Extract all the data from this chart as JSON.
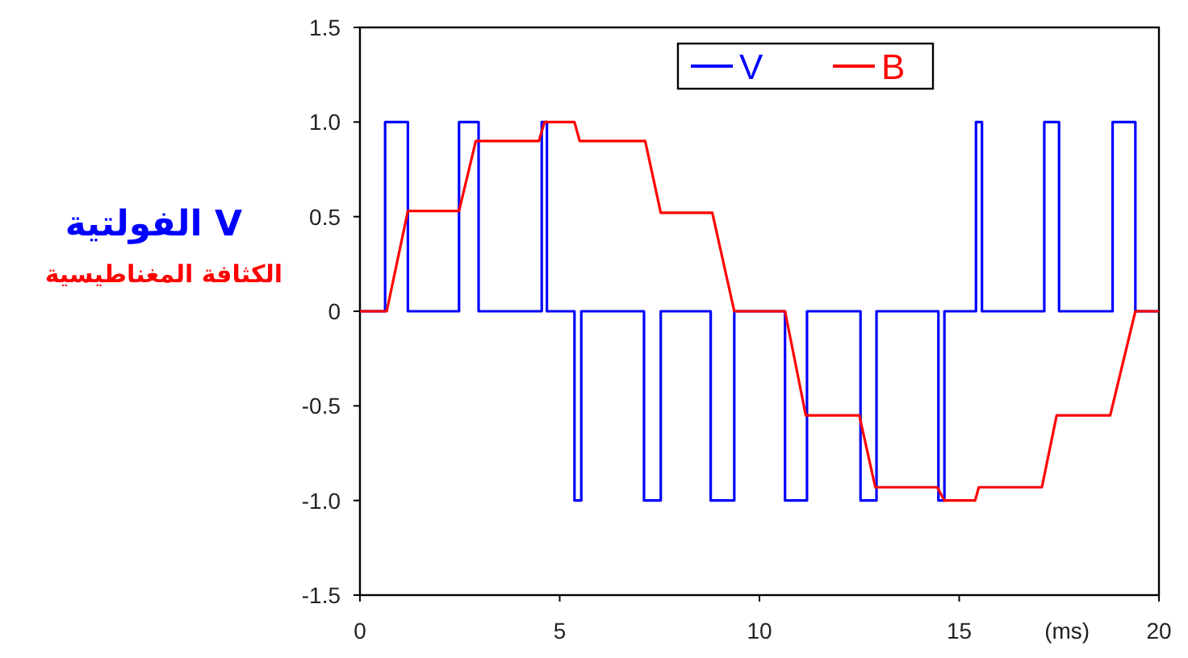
{
  "chart_data": {
    "type": "line",
    "xlim": [
      0,
      20
    ],
    "ylim": [
      -1.5,
      1.5
    ],
    "xticks": [
      0,
      5,
      10,
      15,
      20
    ],
    "yticks": [
      {
        "value": -1.5,
        "label": "-1.5"
      },
      {
        "value": -1,
        "label": "-1.0"
      },
      {
        "value": -0.5,
        "label": "-0.5"
      },
      0,
      {
        "value": 0.5,
        "label": "0.5"
      },
      {
        "value": 1,
        "label": "1.0"
      },
      {
        "value": 1.5,
        "label": "1.5"
      }
    ],
    "xlabel": "(ms)",
    "legend": "top",
    "annotations": [
      "V الفولتية",
      "الكثافة المغناطيسية"
    ],
    "series": [
      {
        "name": "V",
        "type": "step",
        "color": "#0000ff",
        "x": [
          0,
          0.63,
          1.2,
          2.48,
          2.97,
          4.55,
          4.68,
          5.37,
          5.54,
          7.11,
          7.53,
          8.78,
          9.37,
          10.64,
          11.19,
          12.53,
          12.93,
          14.48,
          14.63,
          15.42,
          15.57,
          17.13,
          17.5,
          18.84,
          19.41,
          20
        ],
        "values": [
          0,
          1,
          0,
          1,
          0,
          1,
          0,
          -1,
          0,
          -1,
          0,
          -1,
          0,
          -1,
          0,
          -1,
          0,
          -1,
          0,
          1,
          0,
          1,
          0,
          1,
          0,
          0
        ]
      },
      {
        "name": "B",
        "type": "line",
        "color": "#ff0000",
        "x": [
          0,
          0.67,
          1.2,
          2.48,
          2.9,
          4.48,
          4.62,
          5.37,
          5.5,
          7.14,
          7.53,
          8.82,
          9.37,
          10.64,
          11.16,
          12.5,
          12.9,
          14.45,
          14.63,
          15.4,
          15.49,
          17.07,
          17.44,
          18.78,
          19.41,
          20
        ],
        "values": [
          0,
          0,
          0.53,
          0.53,
          0.9,
          0.9,
          1,
          1,
          0.9,
          0.9,
          0.52,
          0.52,
          0,
          0,
          -0.55,
          -0.55,
          -0.93,
          -0.93,
          -1,
          -1,
          -0.93,
          -0.93,
          -0.55,
          -0.55,
          0,
          0
        ]
      }
    ]
  }
}
